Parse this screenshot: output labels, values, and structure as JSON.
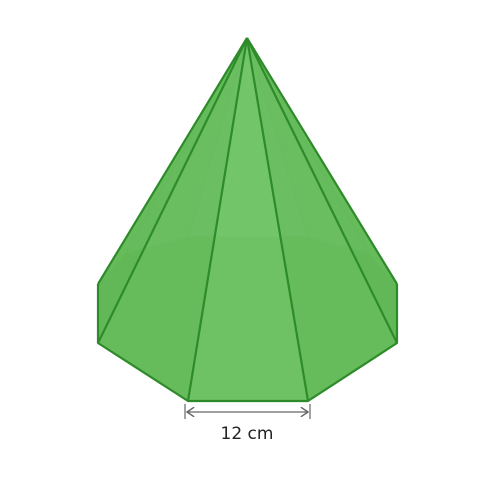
{
  "figure": {
    "shape": "octagonal pyramid",
    "colors": {
      "fill_light": "#a3d99a",
      "fill_mid": "#6cc25f",
      "fill_dark": "#3fa53a",
      "edge": "#2e8b2a",
      "hidden_edge": "#8fd08a",
      "dimension": "#666666"
    }
  },
  "dimension": {
    "base_edge_label": "12 cm"
  }
}
